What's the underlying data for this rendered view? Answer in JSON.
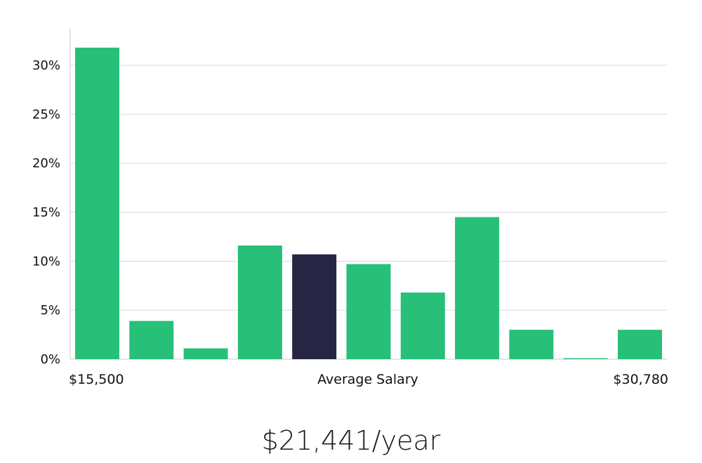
{
  "chart_data": {
    "type": "bar",
    "values": [
      31.8,
      3.9,
      1.1,
      11.6,
      10.7,
      9.7,
      6.8,
      14.5,
      3.0,
      0.1,
      3.0
    ],
    "highlight_index": 4,
    "colors": {
      "bar": "#28bf78",
      "highlight": "#262544",
      "grid": "#d9d9d9",
      "axis": "#cccccc"
    },
    "y_ticks": [
      0,
      5,
      10,
      15,
      20,
      25,
      30
    ],
    "y_tick_suffix": "%",
    "ylim": [
      0,
      33.8
    ],
    "grid": true,
    "x_labels": {
      "left": "$15,500",
      "center": "Average Salary",
      "right": "$30,780"
    }
  },
  "summary": {
    "average_salary": "$21,441/year"
  }
}
